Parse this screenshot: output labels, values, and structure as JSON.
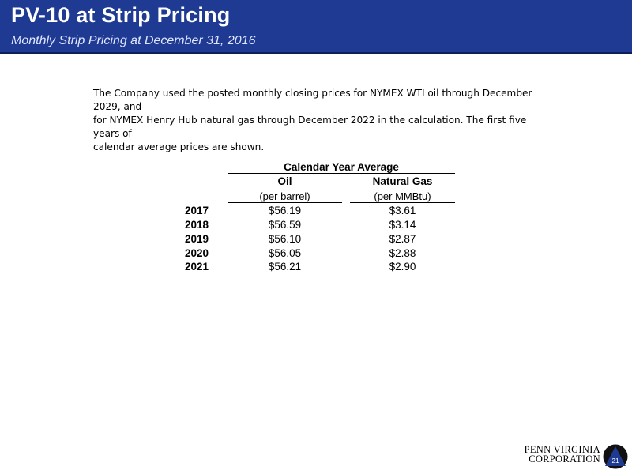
{
  "header": {
    "title": "PV-10 at Strip Pricing",
    "subtitle": "Monthly Strip Pricing at December 31, 2016"
  },
  "intro": {
    "lines": [
      "The Company used the posted monthly closing prices for NYMEX WTI oil through December 2029, and",
      "for NYMEX Henry Hub natural gas through December 2022 in the calculation.  The first five years of",
      "calendar average prices are shown."
    ]
  },
  "table": {
    "group_header": "Calendar Year Average",
    "columns": [
      {
        "label": "Oil",
        "unit": "(per barrel)"
      },
      {
        "label": "Natural Gas",
        "unit": "(per MMBtu)"
      }
    ],
    "rows": [
      {
        "year": "2017",
        "oil": "$56.19",
        "gas": "$3.61"
      },
      {
        "year": "2018",
        "oil": "$56.59",
        "gas": "$3.14"
      },
      {
        "year": "2019",
        "oil": "$56.10",
        "gas": "$2.87"
      },
      {
        "year": "2020",
        "oil": "$56.05",
        "gas": "$2.88"
      },
      {
        "year": "2021",
        "oil": "$56.21",
        "gas": "$2.90"
      }
    ]
  },
  "footer": {
    "logo_line1": "PENN VIRGINIA",
    "logo_line2": "CORPORATION",
    "page_number": "21"
  },
  "colors": {
    "header_bg": "#1f3a93",
    "logo_triangle": "#1f3a93",
    "logo_circle": "#111111"
  }
}
